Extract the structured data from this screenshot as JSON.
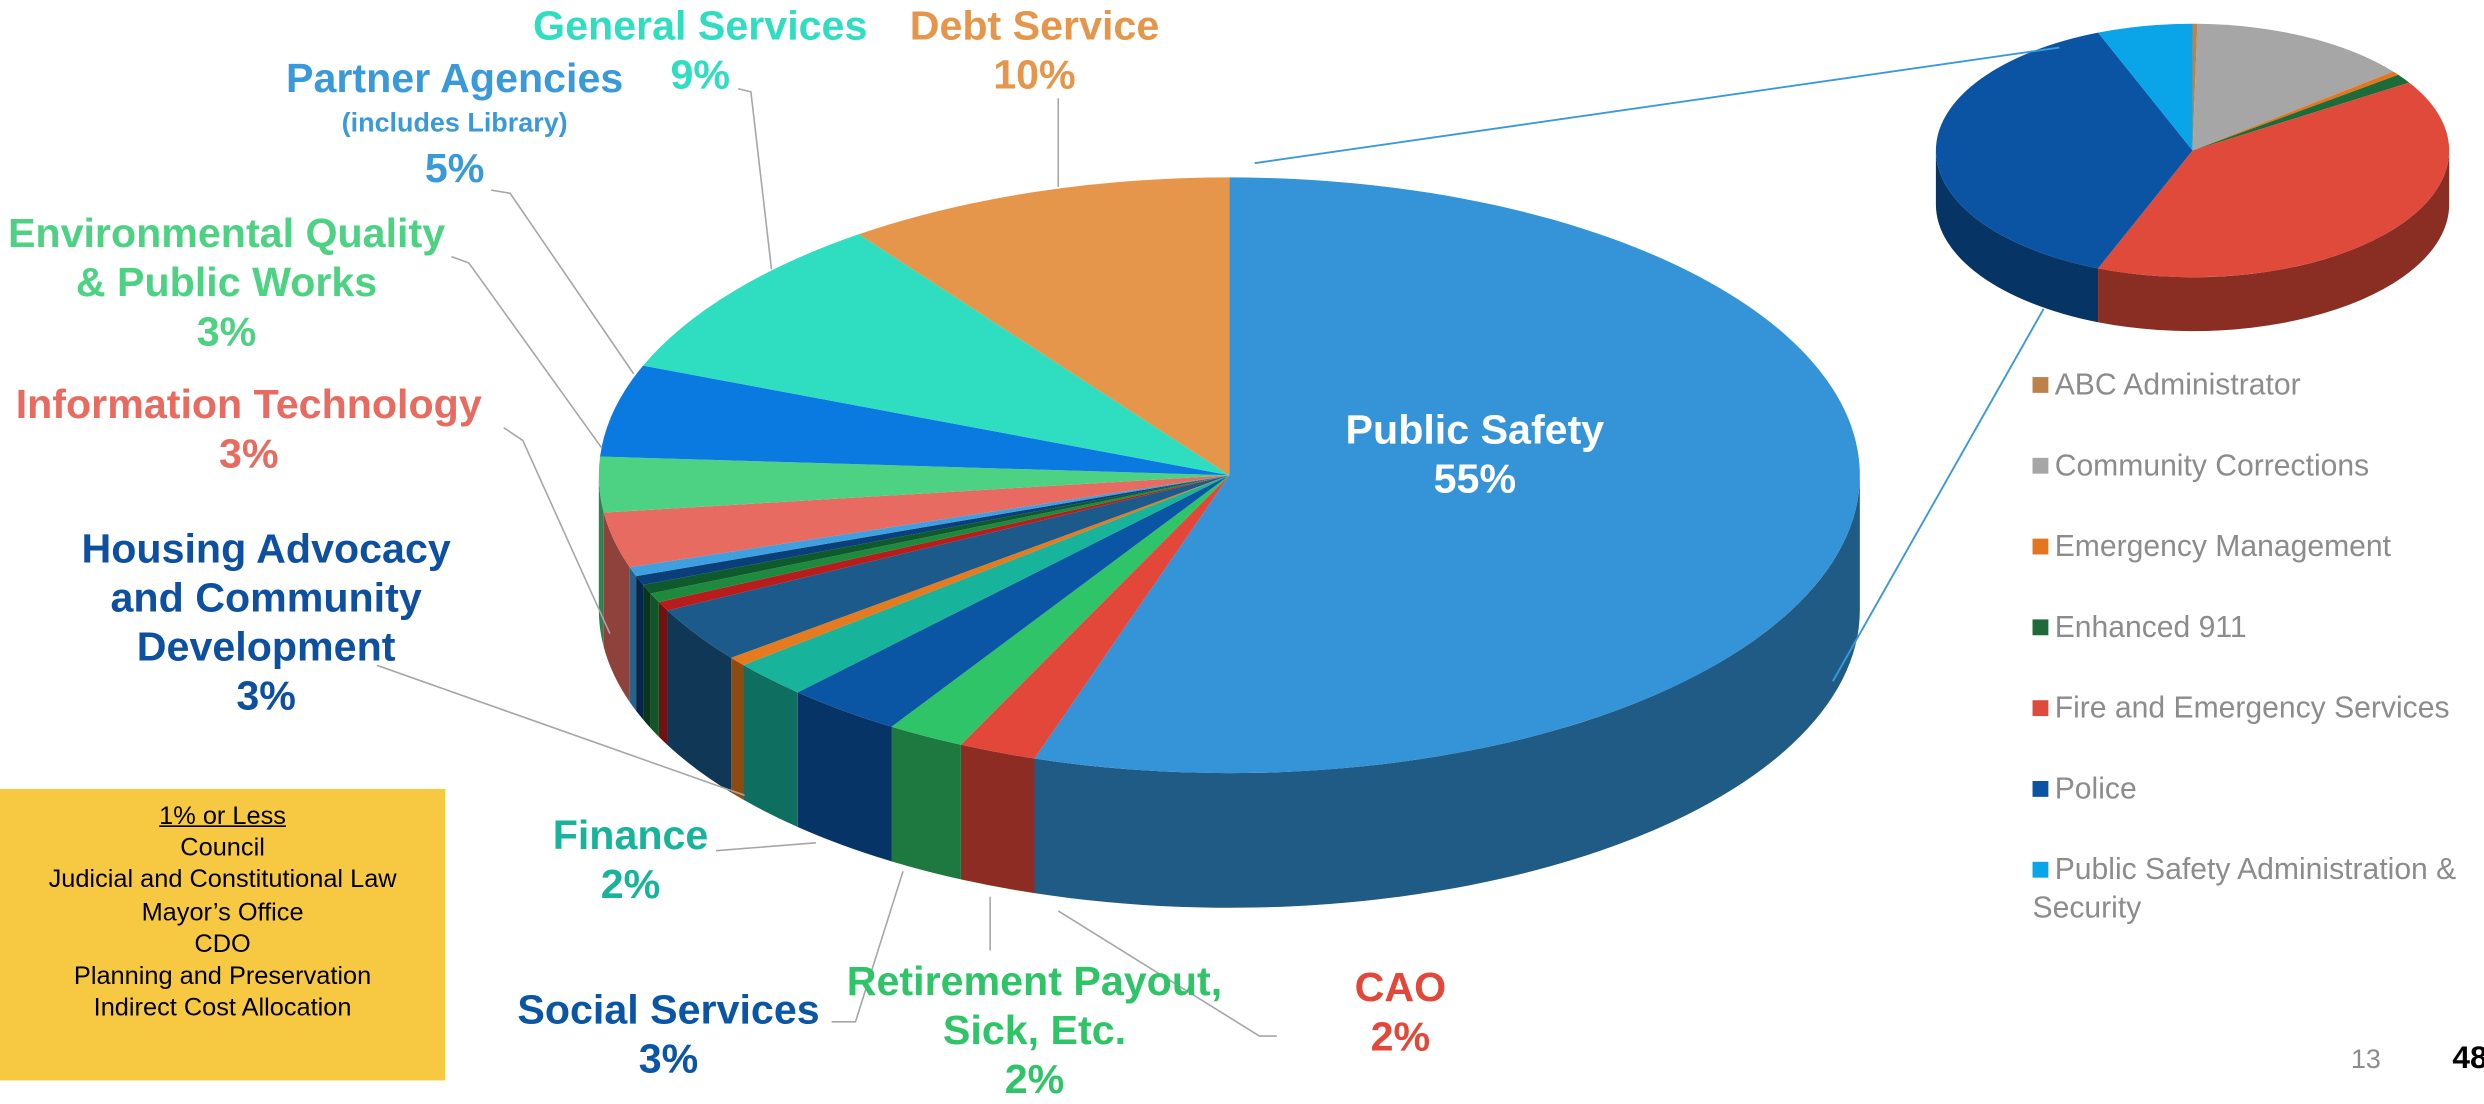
{
  "chart_data": [
    {
      "type": "pie",
      "categories": [
        "Public Safety",
        "CAO",
        "Retirement Payout, Sick, Etc.",
        "Social Services",
        "Finance",
        "Council",
        "Housing Advocacy and Community Development",
        "Judicial and Constitutional Law",
        "Mayor’s Office",
        "CDO",
        "Planning and Preservation",
        "Indirect Cost Allocation",
        "Information Technology",
        "Environmental Quality & Public Works",
        "Partner Agencies",
        "General Services",
        "Debt Service"
      ],
      "values": [
        55,
        2,
        2,
        3,
        2,
        0.5,
        3,
        0.5,
        0.5,
        0.5,
        0.5,
        0.5,
        3,
        3,
        5,
        9,
        10
      ],
      "value_labels": [
        "55%",
        "2%",
        "2%",
        "3%",
        "2%",
        null,
        "3%",
        null,
        null,
        null,
        null,
        null,
        "3%",
        "3%",
        "5%",
        "9%",
        "10%"
      ],
      "colors": [
        "#3594d8",
        "#e3473a",
        "#2fc467",
        "#0b55a5",
        "#17b39a",
        "#e57a1e",
        "#1b5a8a",
        "#b81c1c",
        "#1e8a3e",
        "#0e5a2c",
        "#0a3f7a",
        "#3fa0e0",
        "#e76b61",
        "#4dd283",
        "#0a7ae0",
        "#2fddc0",
        "#e5964b"
      ],
      "annotations": [
        "(includes Library)"
      ],
      "group_label": "1% or Less"
    },
    {
      "type": "pie",
      "categories": [
        "ABC Administrator",
        "Community Corrections",
        "Emergency Management",
        "Enhanced 911",
        "Fire and Emergency Services",
        "Police",
        "Public Safety Administration & Security"
      ],
      "values": [
        0.3,
        14,
        0.5,
        1.2,
        40,
        38,
        6
      ],
      "colors": [
        "#c0804a",
        "#a6a6a6",
        "#e6761e",
        "#1e6b3a",
        "#e04a3a",
        "#0b54a4",
        "#0aa5e8"
      ]
    }
  ],
  "footer": {
    "page_number": "13",
    "slide_number": "48"
  }
}
